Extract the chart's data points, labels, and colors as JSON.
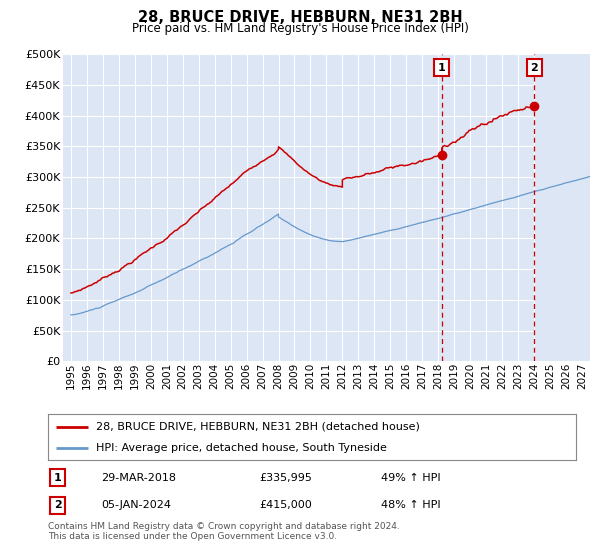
{
  "title": "28, BRUCE DRIVE, HEBBURN, NE31 2BH",
  "subtitle": "Price paid vs. HM Land Registry's House Price Index (HPI)",
  "legend_line1": "28, BRUCE DRIVE, HEBBURN, NE31 2BH (detached house)",
  "legend_line2": "HPI: Average price, detached house, South Tyneside",
  "annotation1_date": "29-MAR-2018",
  "annotation1_price": "£335,995",
  "annotation1_hpi": "49% ↑ HPI",
  "annotation2_date": "05-JAN-2024",
  "annotation2_price": "£415,000",
  "annotation2_hpi": "48% ↑ HPI",
  "vline1_x": 2018.23,
  "vline2_x": 2024.02,
  "dot1_x": 2018.23,
  "dot1_y": 335995,
  "dot2_x": 2024.02,
  "dot2_y": 415000,
  "red_color": "#cc0000",
  "blue_color": "#6699cc",
  "background_color": "#dce6f5",
  "grid_color": "#c8d4e8",
  "future_hatch_color": "#c0cce0",
  "label_box_color": "#cc0000",
  "footer": "Contains HM Land Registry data © Crown copyright and database right 2024.\nThis data is licensed under the Open Government Licence v3.0.",
  "ylim": [
    0,
    500000
  ],
  "xlim": [
    1994.5,
    2027.5
  ],
  "future_start": 2024.08,
  "yticks": [
    0,
    50000,
    100000,
    150000,
    200000,
    250000,
    300000,
    350000,
    400000,
    450000,
    500000
  ],
  "xticks": [
    1995,
    1996,
    1997,
    1998,
    1999,
    2000,
    2001,
    2002,
    2003,
    2004,
    2005,
    2006,
    2007,
    2008,
    2009,
    2010,
    2011,
    2012,
    2013,
    2014,
    2015,
    2016,
    2017,
    2018,
    2019,
    2020,
    2021,
    2022,
    2023,
    2024,
    2025,
    2026,
    2027
  ]
}
